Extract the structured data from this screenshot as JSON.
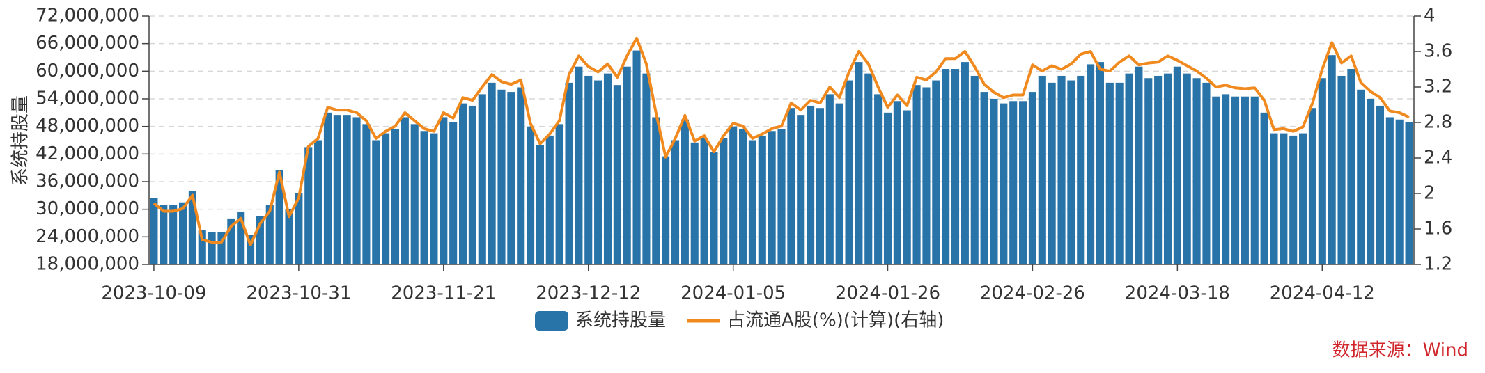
{
  "chart_data": {
    "type": "bar_line",
    "y_axis_label": "系统持股量",
    "source": "数据来源：Wind",
    "categories": [
      "2023-10-09",
      null,
      null,
      null,
      null,
      null,
      null,
      null,
      null,
      null,
      null,
      null,
      null,
      null,
      null,
      "2023-10-31",
      null,
      null,
      null,
      null,
      null,
      null,
      null,
      null,
      null,
      null,
      null,
      null,
      null,
      null,
      "2023-11-21",
      null,
      null,
      null,
      null,
      null,
      null,
      null,
      null,
      null,
      null,
      null,
      null,
      null,
      null,
      "2023-12-12",
      null,
      null,
      null,
      null,
      null,
      null,
      null,
      null,
      null,
      null,
      null,
      null,
      null,
      null,
      "2024-01-05",
      null,
      null,
      null,
      null,
      null,
      null,
      null,
      null,
      null,
      null,
      null,
      null,
      null,
      null,
      null,
      "2024-01-26",
      null,
      null,
      null,
      null,
      null,
      null,
      null,
      null,
      null,
      null,
      null,
      null,
      null,
      null,
      "2024-02-26",
      null,
      null,
      null,
      null,
      null,
      null,
      null,
      null,
      null,
      null,
      null,
      null,
      null,
      null,
      "2024-03-18",
      null,
      null,
      null,
      null,
      null,
      null,
      null,
      null,
      null,
      null,
      null,
      null,
      null,
      null,
      "2024-04-12",
      null,
      null,
      null,
      null,
      null,
      null,
      null,
      null,
      null
    ],
    "series": [
      {
        "name": "系统持股量",
        "color": "#2873a8",
        "values": [
          32500000,
          31000000,
          31000000,
          31500000,
          34000000,
          25500000,
          25000000,
          25000000,
          28000000,
          29500000,
          24500000,
          28500000,
          31000000,
          38500000,
          30000000,
          33500000,
          43500000,
          45000000,
          51000000,
          50500000,
          50500000,
          50000000,
          48500000,
          45000000,
          46500000,
          47500000,
          50000000,
          48500000,
          47000000,
          46500000,
          50000000,
          49000000,
          53000000,
          52500000,
          55000000,
          57500000,
          56000000,
          55500000,
          56500000,
          48000000,
          44000000,
          46000000,
          48500000,
          57500000,
          61000000,
          59000000,
          58000000,
          59500000,
          57000000,
          61000000,
          64500000,
          59500000,
          50000000,
          41500000,
          45000000,
          49500000,
          44500000,
          45500000,
          42500000,
          45500000,
          48000000,
          47500000,
          45000000,
          46000000,
          47000000,
          47500000,
          52000000,
          50500000,
          52500000,
          52000000,
          55000000,
          53000000,
          58000000,
          62000000,
          59500000,
          55000000,
          51000000,
          53500000,
          51500000,
          57000000,
          56500000,
          58000000,
          60500000,
          60500000,
          62000000,
          59000000,
          55500000,
          54000000,
          53000000,
          53500000,
          53500000,
          55500000,
          59000000,
          57500000,
          59000000,
          58000000,
          59000000,
          61500000,
          62000000,
          57500000,
          57500000,
          59500000,
          61000000,
          58500000,
          59000000,
          59500000,
          61000000,
          59500000,
          58500000,
          57500000,
          54500000,
          55000000,
          54500000,
          54500000,
          54500000,
          51000000,
          46500000,
          46500000,
          46000000,
          46500000,
          52000000,
          58500000,
          63500000,
          59000000,
          60500000,
          56000000,
          54000000,
          52500000,
          50000000,
          49500000,
          49000000
        ]
      },
      {
        "name": "占流通A股(%)(计算)(右轴)",
        "color": "#f0891e",
        "axis": "y2",
        "values": [
          1.89,
          1.8,
          1.8,
          1.83,
          1.98,
          1.48,
          1.45,
          1.45,
          1.63,
          1.72,
          1.42,
          1.66,
          1.8,
          2.24,
          1.74,
          1.95,
          2.53,
          2.62,
          2.97,
          2.94,
          2.94,
          2.91,
          2.82,
          2.62,
          2.7,
          2.76,
          2.91,
          2.82,
          2.73,
          2.7,
          2.91,
          2.85,
          3.08,
          3.05,
          3.2,
          3.34,
          3.26,
          3.23,
          3.28,
          2.79,
          2.56,
          2.67,
          2.82,
          3.34,
          3.55,
          3.43,
          3.37,
          3.46,
          3.31,
          3.55,
          3.75,
          3.46,
          2.91,
          2.41,
          2.62,
          2.88,
          2.59,
          2.65,
          2.47,
          2.65,
          2.79,
          2.76,
          2.62,
          2.67,
          2.73,
          2.76,
          3.02,
          2.94,
          3.05,
          3.02,
          3.2,
          3.08,
          3.37,
          3.6,
          3.46,
          3.2,
          2.97,
          3.11,
          2.99,
          3.31,
          3.28,
          3.37,
          3.52,
          3.52,
          3.6,
          3.43,
          3.23,
          3.14,
          3.08,
          3.11,
          3.11,
          3.45,
          3.38,
          3.44,
          3.4,
          3.46,
          3.57,
          3.6,
          3.4,
          3.38,
          3.48,
          3.55,
          3.45,
          3.47,
          3.48,
          3.55,
          3.5,
          3.44,
          3.38,
          3.3,
          3.2,
          3.22,
          3.19,
          3.18,
          3.19,
          3.05,
          2.72,
          2.73,
          2.7,
          2.75,
          3.02,
          3.4,
          3.7,
          3.47,
          3.55,
          3.25,
          3.15,
          3.08,
          2.93,
          2.91,
          2.86
        ]
      }
    ],
    "ylim": [
      18000000,
      72000000
    ],
    "yticks": [
      {
        "value": 18000000,
        "label": "18,000,000"
      },
      {
        "value": 24000000,
        "label": "24,000,000"
      },
      {
        "value": 30000000,
        "label": "30,000,000"
      },
      {
        "value": 36000000,
        "label": "36,000,000"
      },
      {
        "value": 42000000,
        "label": "42,000,000"
      },
      {
        "value": 48000000,
        "label": "48,000,000"
      },
      {
        "value": 54000000,
        "label": "54,000,000"
      },
      {
        "value": 60000000,
        "label": "60,000,000"
      },
      {
        "value": 66000000,
        "label": "66,000,000"
      },
      {
        "value": 72000000,
        "label": "72,000,000"
      }
    ],
    "y2lim": [
      1.2,
      4
    ],
    "y2ticks": [
      1.2,
      1.6,
      2,
      2.4,
      2.8,
      3.2,
      3.6,
      4
    ],
    "grid": true,
    "legend": "bottom"
  }
}
